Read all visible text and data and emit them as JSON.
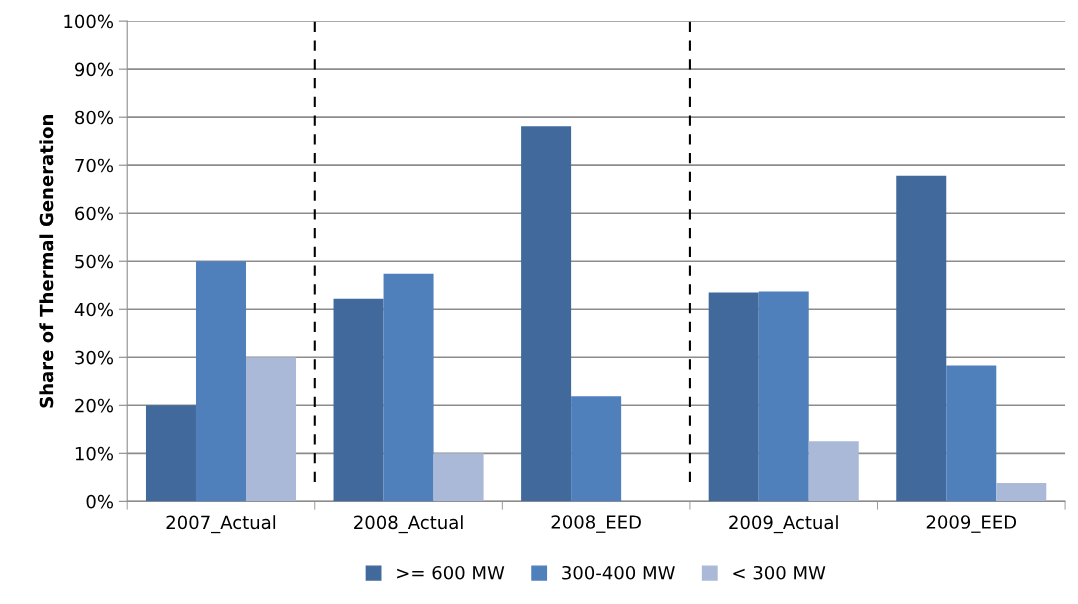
{
  "chart_data": {
    "type": "bar",
    "ylabel": "Share of Thermal Generation",
    "categories": [
      "2007_Actual",
      "2008_Actual",
      "2008_EED",
      "2009_Actual",
      "2009_EED"
    ],
    "series": [
      {
        "name": ">= 600 MW",
        "color": "#41699c",
        "values": [
          20,
          42.2,
          78.1,
          43.5,
          67.8
        ]
      },
      {
        "name": "300-400 MW",
        "color": "#4f80bc",
        "values": [
          50,
          47.4,
          21.9,
          43.7,
          28.3
        ]
      },
      {
        "name": "< 300 MW",
        "color": "#aab9d7",
        "values": [
          30,
          10,
          0,
          12.5,
          3.8
        ]
      }
    ],
    "ylim": [
      0,
      100
    ],
    "yticks": [
      {
        "value": 0,
        "label": "0%"
      },
      {
        "value": 10,
        "label": "10%"
      },
      {
        "value": 20,
        "label": "20%"
      },
      {
        "value": 30,
        "label": "30%"
      },
      {
        "value": 40,
        "label": "40%"
      },
      {
        "value": 50,
        "label": "50%"
      },
      {
        "value": 60,
        "label": "60%"
      },
      {
        "value": 70,
        "label": "70%"
      },
      {
        "value": 80,
        "label": "80%"
      },
      {
        "value": 90,
        "label": "90%"
      },
      {
        "value": 100,
        "label": "100%"
      }
    ],
    "grid": "y",
    "legend": "bottom"
  }
}
